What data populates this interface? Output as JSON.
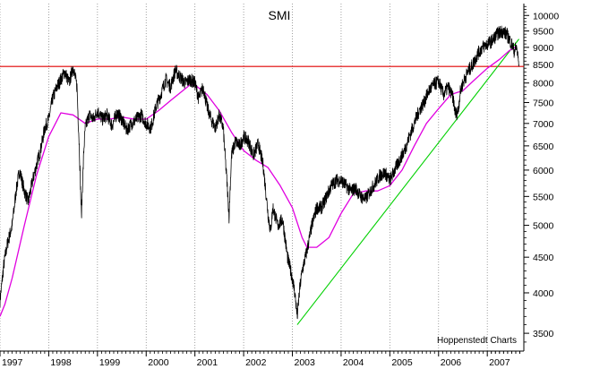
{
  "chart_data": {
    "type": "line",
    "title": "SMI",
    "credit": "Hoppenstedt Charts",
    "y_scale": "log",
    "y_axis_position": "right",
    "ylim": [
      3300,
      10400
    ],
    "xlim": [
      1997.0,
      2007.75
    ],
    "y_ticks": [
      3500,
      4000,
      4500,
      5000,
      5500,
      6000,
      6500,
      7000,
      7500,
      8000,
      8500,
      9000,
      9500,
      10000
    ],
    "x_tick_labels": [
      "1997",
      "1998",
      "1999",
      "2000",
      "2001",
      "2002",
      "2003",
      "2004",
      "2005",
      "2006",
      "2007"
    ],
    "grid": "vertical-dotted",
    "colors": {
      "price": "#000000",
      "moving_average": "#e000e0",
      "resistance": "#e00000",
      "trendline": "#00d000"
    },
    "series": [
      {
        "role": "price",
        "x": [
          1997.0,
          1997.08,
          1997.15,
          1997.25,
          1997.33,
          1997.4,
          1997.5,
          1997.58,
          1997.67,
          1997.75,
          1997.83,
          1997.92,
          1998.0,
          1998.08,
          1998.17,
          1998.25,
          1998.33,
          1998.42,
          1998.5,
          1998.58,
          1998.63,
          1998.67,
          1998.72,
          1998.75,
          1998.83,
          1998.92,
          1999.0,
          1999.1,
          1999.2,
          1999.3,
          1999.4,
          1999.5,
          1999.6,
          1999.7,
          1999.8,
          1999.9,
          2000.0,
          2000.1,
          2000.2,
          2000.3,
          2000.4,
          2000.5,
          2000.6,
          2000.7,
          2000.8,
          2000.9,
          2001.0,
          2001.08,
          2001.17,
          2001.25,
          2001.33,
          2001.42,
          2001.5,
          2001.58,
          2001.67,
          2001.7,
          2001.75,
          2001.83,
          2001.92,
          2002.0,
          2002.1,
          2002.2,
          2002.3,
          2002.4,
          2002.5,
          2002.55,
          2002.6,
          2002.7,
          2002.8,
          2002.9,
          2003.0,
          2003.05,
          2003.1,
          2003.15,
          2003.2,
          2003.3,
          2003.4,
          2003.5,
          2003.6,
          2003.7,
          2003.8,
          2003.9,
          2004.0,
          2004.1,
          2004.2,
          2004.3,
          2004.4,
          2004.5,
          2004.6,
          2004.7,
          2004.8,
          2004.9,
          2005.0,
          2005.1,
          2005.2,
          2005.3,
          2005.4,
          2005.5,
          2005.6,
          2005.7,
          2005.8,
          2005.9,
          2006.0,
          2006.1,
          2006.2,
          2006.3,
          2006.35,
          2006.4,
          2006.45,
          2006.5,
          2006.6,
          2006.7,
          2006.8,
          2006.9,
          2007.0,
          2007.1,
          2007.2,
          2007.3,
          2007.4,
          2007.5,
          2007.55,
          2007.6,
          2007.65
        ],
        "y": [
          3900,
          4400,
          4700,
          5000,
          5600,
          6000,
          5600,
          5400,
          5800,
          6100,
          6400,
          6900,
          7100,
          7600,
          7900,
          8100,
          8300,
          8000,
          8450,
          7900,
          6400,
          5150,
          6400,
          6900,
          7200,
          7100,
          7300,
          7100,
          7200,
          6950,
          7250,
          7100,
          6850,
          7000,
          7100,
          7200,
          7000,
          6900,
          7400,
          7700,
          8100,
          7900,
          8350,
          8150,
          8000,
          8100,
          8000,
          7600,
          7900,
          7400,
          7100,
          6900,
          7200,
          6900,
          5600,
          5150,
          6300,
          6600,
          6500,
          6700,
          6600,
          6300,
          6550,
          6100,
          5200,
          4900,
          5300,
          5000,
          5100,
          4500,
          4200,
          4000,
          3700,
          4050,
          4300,
          4600,
          5000,
          5300,
          5300,
          5500,
          5700,
          5800,
          5800,
          5700,
          5600,
          5650,
          5500,
          5450,
          5600,
          5750,
          5900,
          5950,
          5800,
          6000,
          6200,
          6400,
          6700,
          7000,
          7300,
          7500,
          7800,
          7950,
          8050,
          7700,
          7900,
          7600,
          7200,
          7300,
          7800,
          8000,
          8300,
          8500,
          8800,
          9000,
          9100,
          9200,
          9400,
          9500,
          9400,
          9100,
          8900,
          9000,
          8500
        ]
      },
      {
        "role": "moving_average",
        "x": [
          1997.0,
          1997.1,
          1997.25,
          1997.5,
          1997.75,
          1998.0,
          1998.25,
          1998.5,
          1998.75,
          1999.0,
          1999.25,
          1999.5,
          1999.75,
          2000.0,
          2000.25,
          2000.5,
          2000.75,
          2000.9,
          2001.0,
          2001.25,
          2001.5,
          2001.75,
          2002.0,
          2002.25,
          2002.5,
          2002.75,
          2003.0,
          2003.2,
          2003.3,
          2003.5,
          2003.75,
          2004.0,
          2004.25,
          2004.5,
          2004.75,
          2005.0,
          2005.25,
          2005.5,
          2005.75,
          2006.0,
          2006.25,
          2006.5,
          2006.75,
          2007.0,
          2007.25,
          2007.45,
          2007.55,
          2007.6
        ],
        "y": [
          3700,
          3850,
          4200,
          5000,
          5900,
          6700,
          7250,
          7200,
          7000,
          7100,
          7100,
          7150,
          7100,
          7100,
          7300,
          7550,
          7800,
          7950,
          7950,
          7700,
          7300,
          6800,
          6400,
          6200,
          6050,
          5700,
          5300,
          4800,
          4650,
          4650,
          4800,
          5200,
          5550,
          5600,
          5600,
          5700,
          6000,
          6500,
          7000,
          7350,
          7700,
          7800,
          8100,
          8400,
          8650,
          8900,
          9000,
          8950
        ]
      }
    ],
    "reference_lines": [
      {
        "role": "resistance",
        "type": "horizontal",
        "y": 8450
      },
      {
        "role": "trendline",
        "type": "segment",
        "x": [
          2003.1,
          2007.65
        ],
        "y": [
          3600,
          9250
        ]
      }
    ]
  }
}
